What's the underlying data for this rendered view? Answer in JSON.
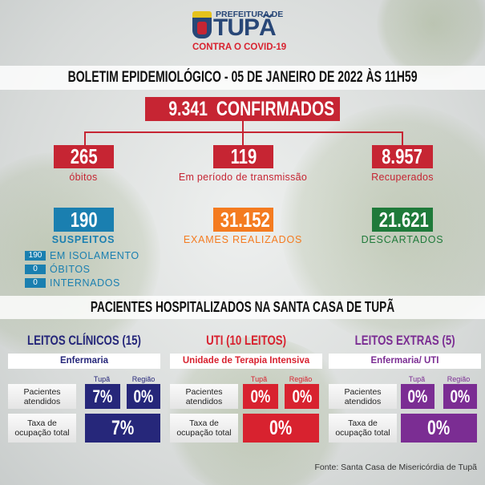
{
  "logo": {
    "line1": "PREFEITURA DE",
    "line2": "TUPÃ",
    "line3": "CONTRA O COVID-19"
  },
  "title": "BOLETIM EPIDEMIOLÓGICO - 05 DE JANEIRO DE 2022 ÀS 11H59",
  "confirmed": {
    "value": "9.341",
    "label": "CONFIRMADOS"
  },
  "breakdown": [
    {
      "value": "265",
      "label": "óbitos"
    },
    {
      "value": "119",
      "label": "Em período de transmissão"
    },
    {
      "value": "8.957",
      "label": "Recuperados"
    }
  ],
  "stats": [
    {
      "value": "190",
      "label": "SUSPEITOS",
      "color": "#1a7fb0"
    },
    {
      "value": "31.152",
      "label": "EXAMES REALIZADOS",
      "color": "#f47b20"
    },
    {
      "value": "21.621",
      "label": "DESCARTADOS",
      "color": "#1f7a3a"
    }
  ],
  "suspects_detail": [
    {
      "value": "190",
      "label": "EM ISOLAMENTO"
    },
    {
      "value": "0",
      "label": "ÓBITOS"
    },
    {
      "value": "0",
      "label": "INTERNADOS"
    }
  ],
  "hospital_title": "PACIENTES HOSPITALIZADOS NA SANTA CASA DE TUPÃ",
  "row_labels": {
    "patients": "Pacientes atendidos",
    "occupancy": "Taxa de ocupação total",
    "tupa": "Tupã",
    "regiao": "Região"
  },
  "columns": [
    {
      "title": "LEITOS CLÍNICOS (15)",
      "subtitle": "Enfermaria",
      "tupa": "7%",
      "regiao": "0%",
      "total": "7%",
      "color": "#26277a"
    },
    {
      "title": "UTI (10 LEITOS)",
      "subtitle": "Unidade de Terapia Intensiva",
      "tupa": "0%",
      "regiao": "0%",
      "total": "0%",
      "color": "#d8222f"
    },
    {
      "title": "LEITOS EXTRAS (5)",
      "subtitle": "Enfermaria/ UTI",
      "tupa": "0%",
      "regiao": "0%",
      "total": "0%",
      "color": "#7b2d93"
    }
  ],
  "footer": "Fonte: Santa Casa de Misericórdia de Tupã"
}
